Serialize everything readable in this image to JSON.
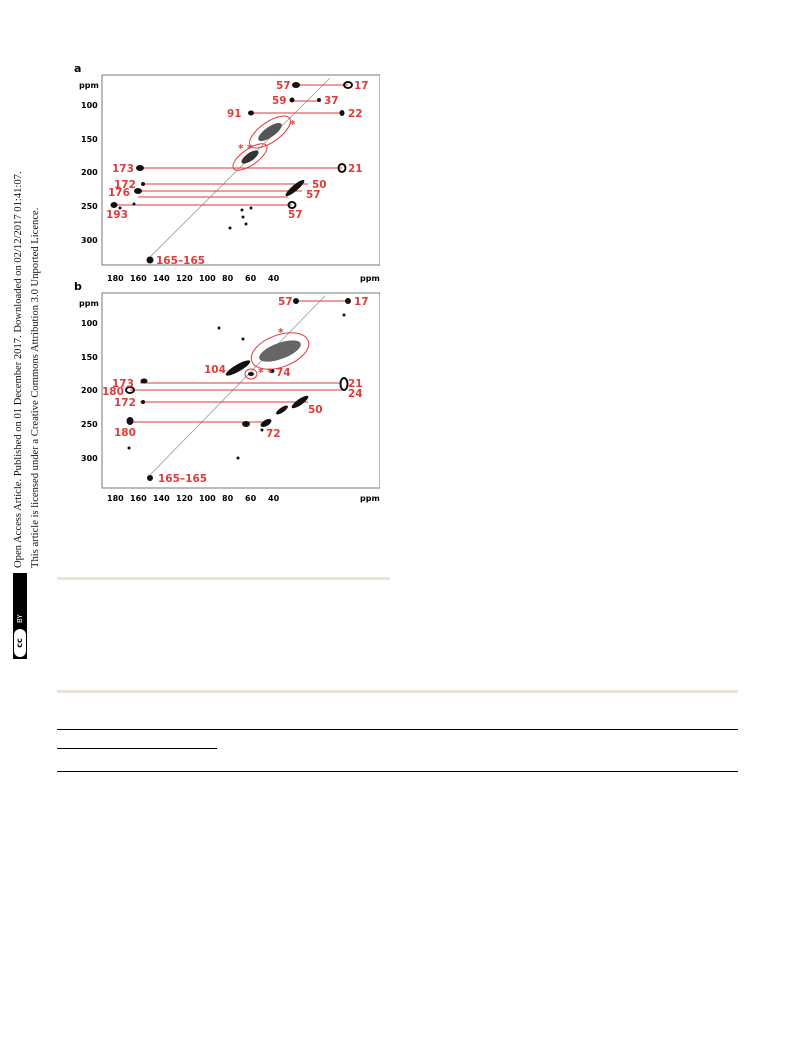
{
  "side_notice": {
    "line1": "Open Access Article. Published on 01 December 2017. Downloaded on 02/12/2017 01:41:07.",
    "line2": "This article is licensed under a Creative Commons Attribution 3.0 Unported Licence.",
    "badge_cc": "cc",
    "badge_by": "BY"
  },
  "figure": {
    "panels": [
      {
        "letter": "a",
        "axis_unit_y": "ppm",
        "axis_unit_x": "ppm",
        "y_ticks": [
          "100",
          "150",
          "200",
          "250",
          "300"
        ],
        "x_ticks": [
          "180",
          "160",
          "140",
          "120",
          "100",
          "80",
          "60",
          "40"
        ],
        "labels": {
          "l57a": "57",
          "l17": "17",
          "l59": "59",
          "l37": "37",
          "l91": "91",
          "l22": "22",
          "star1": "*",
          "star2": "* *",
          "l173": "173",
          "l21": "21",
          "l172": "172",
          "l50": "50",
          "l176": "176",
          "l57b": "57",
          "l193": "193",
          "l57c": "57",
          "l165": "165–165"
        }
      },
      {
        "letter": "b",
        "axis_unit_y": "ppm",
        "axis_unit_x": "ppm",
        "y_ticks": [
          "100",
          "150",
          "200",
          "250",
          "300"
        ],
        "x_ticks": [
          "180",
          "160",
          "140",
          "120",
          "100",
          "80",
          "60",
          "40"
        ],
        "labels": {
          "l57": "57",
          "l17": "17",
          "star": "*",
          "l104": "104",
          "l74": "74",
          "star2": "* *",
          "l173": "173",
          "l21": "21",
          "l180a": "180",
          "l24": "24",
          "l172": "172",
          "l50": "50",
          "l180b": "180",
          "l72": "72",
          "l165": "165–165"
        }
      }
    ]
  },
  "colors": {
    "label_red": "#e33a3a",
    "rule_beige": "#e9e5d2"
  }
}
